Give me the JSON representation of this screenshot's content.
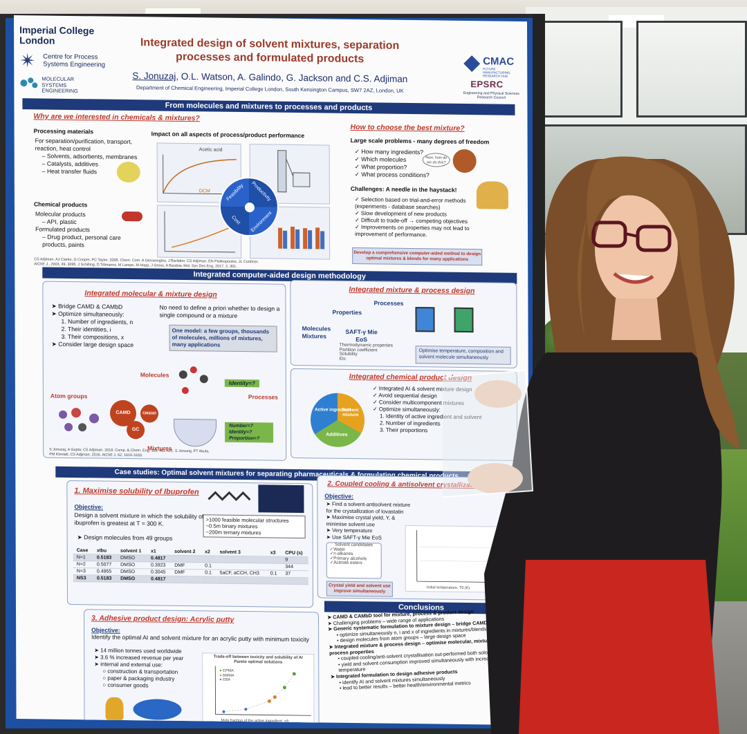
{
  "poster": {
    "header": {
      "institution": "Imperial College London",
      "centre": "Centre for Process Systems Engineering",
      "mse": "MOLECULAR SYSTEMS ENGINEERING",
      "title": "Integrated design of solvent mixtures, separation processes and formulated products",
      "lead_author": "S. Jonuzaj",
      "other_authors": ", O.L. Watson, A. Galindo, G. Jackson and C.S. Adjiman",
      "department": "Department of Chemical Engineering, Imperial College London, South Kensington Campus, SW7 2AZ, London, UK",
      "cmac": "CMAC",
      "cmac_sub": "FUTURE MANUFACTURING RESEARCH HUB",
      "epsrc": "EPSRC",
      "epsrc_sub": "Engineering and Physical Sciences Research Council"
    },
    "section1": {
      "bar": "From molecules and mixtures to processes and products",
      "why_heading": "Why are we interested in chemicals & mixtures?",
      "processing_heading": "Processing materials",
      "processing_items": [
        "For separation/purification, transport, reaction, heat control",
        "– Solvents, adsorbents, membranes",
        "– Catalysts, additives",
        "– Heat transfer fluids"
      ],
      "chemical_heading": "Chemical products",
      "chemical_items": [
        "Molecular products",
        "– API, plastic",
        "Formulated products",
        "– Drug product, personal care products, paints"
      ],
      "impact_heading": "Impact on all aspects of process/product performance",
      "acetic_acid": "Acetic acid",
      "dcm": "DCM",
      "feasibility": "Feasibility",
      "productivity": "Productivity",
      "cost": "Cost",
      "environment": "Environment",
      "refs": "CS Adjiman, AJ Clarke, G Cooper, PC Taylor. 2008. Chem. Com. A Giovanoglou, J Barlatier, CS Adjiman, EN Pistikopoulos, JL Cordiner. AIChE J., 2003, 49, 3095. J Schilling, D Tillmanns, M Lampe, M Hopp, J Gross, A Bardow, Mol. Sys Des Eng, 2017, 2, 301.",
      "how_heading": "How to choose the best mixture?",
      "large_scale": "Large scale problems - many degrees of freedom",
      "questions": [
        "How many ingredients?",
        "Which molecules",
        "What proportion?",
        "What process conditions?"
      ],
      "bubble": "Now, how do we do this?",
      "challenges": "Challenges:  A needle in the haystack!",
      "challenge_items": [
        "Selection based on trial-and-error methods (experiments - database searches)",
        "Slow development of new products",
        "Difficult to trade-off → competing objectives",
        "Improvements on properties may not lead to improvement of performance."
      ],
      "develop": "Develop a comprehensive computer-aided method to design optimal mixtures & blends for many applications"
    },
    "section2": {
      "bar": "Integrated computer-aided design methodology",
      "mm_heading": "Integrated molecular & mixture design",
      "mm_items": [
        "Bridge CAMD & CAMbD",
        "Optimize simultaneously:",
        "1. Number of ingredients, n",
        "2. Their identities, i",
        "3. Their compositions, x",
        "Consider large design space"
      ],
      "no_need": "No need to define a priori whether to design a single compound or a mixture",
      "one_model": "One model: a few groups, thousands of molecules, millions of mixtures, many applications",
      "molecules": "Molecules",
      "atom_groups": "Atom groups",
      "processes": "Processes",
      "mixtures": "Mixtures",
      "identity": "Identity=?",
      "number_identity": "Number=? Identity=? Proportion=?",
      "camd": "CAMD",
      "gc": "GC",
      "cmd": "CM&bD",
      "refs": "S Jonuzaj, A Gupta, CS Adjiman. 2018. Comp. & Chem. Eng. 116, 401-421. S Jonuzaj, PT Akula, PM Kleniati, CS Adjiman. 2016. AIChE J. 62, 1616-1633.",
      "mp_heading": "Integrated mixture & process design",
      "properties": "Properties",
      "process": "Processes",
      "molecules_mixtures": "Molecules Mixtures",
      "saft": "SAFT-γ Mie EoS",
      "thermo": [
        "Thermodynamic properties",
        "Partition coefficient",
        "Solubility",
        "Etc"
      ],
      "optimise": "Optimise temperature, composition and solvent molecule simultaneously",
      "cp_heading": "Integrated chemical product design",
      "cp_items": [
        "Integrated AI & solvent mixture design",
        "Avoid sequential design",
        "Consider multicomponent mixtures",
        "Optimize simultaneously:",
        "1. Identity of active ingredient and solvent",
        "2. Number of ingredients",
        "3. Their proportions"
      ],
      "active": "Active ingredient",
      "solvent": "Solvent mixture",
      "additives": "Additives"
    },
    "section3": {
      "bar": "Case studies: Optimal solvent mixtures for separating pharmaceuticals & formulating chemical products",
      "c1_heading": "1. Maximise solubility of Ibuprofen",
      "objective": "Objective:",
      "c1_obj": "Design a solvent mixture in which the solubility of ibuprofen is greatest at T = 300 K.",
      "c1_design": "Design molecules from 49 groups",
      "c1_box": [
        ">1000 feasible molecular structures",
        "~0.5m binary mixtures",
        "~200m ternary mixtures"
      ],
      "table_head": [
        "Case",
        "xIbu",
        "solvent 1",
        "x1",
        "solvent 2",
        "x2",
        "solvent 3",
        "x3",
        "CPU (s)"
      ],
      "table_rows": [
        [
          "N=1",
          "0.5183",
          "DMSO",
          "0.4817",
          "",
          "",
          "",
          "",
          "9"
        ],
        [
          "N=2",
          "0.5077",
          "DMSO",
          "0.3923",
          "DMF",
          "0.1",
          "",
          "",
          "344"
        ],
        [
          "N=3",
          "0.4955",
          "DMSO",
          "0.3045",
          "DMF",
          "0.1",
          "5aCF, aCCH, CH3",
          "0.1",
          "37"
        ],
        [
          "NS3",
          "0.5183",
          "DMSO",
          "0.4817",
          "",
          "",
          "",
          "",
          ""
        ]
      ],
      "c2_heading": "2. Coupled cooling & antisolvent crystallization",
      "c2_items": [
        "Find a solvent-antisolvent mixture for the crystallization of lovastatin",
        "Maximise crystal yield, Y, & minimise solvent use",
        "Very temperature",
        "Use SAFT-γ Mie EoS"
      ],
      "c2_candidates": "Solvent candidates",
      "c2_list": [
        "Water",
        "n-alkanes",
        "Primary alcohols",
        "Acetate esters"
      ],
      "c2_note": "Crystal yield and solvent use improve simultaneously",
      "c2_xlabel": "Initial temperature, T0 (K)",
      "c2_ylabel": "% Crystal yield, Y",
      "c3_heading": "3. Adhesive product design: Acrylic putty",
      "c3_obj": "Identify the optimal AI and solvent mixture for an acrylic putty with minimum toxicity",
      "c3_items": [
        "14 million tonnes used worldwide",
        "3.6 % increased revenue per year",
        "internal and external use:",
        "construction & transportation",
        "paper & packaging industry",
        "consumer goods"
      ],
      "c3_chart_title": "Trade-off between toxicity and solubility of AI Pareto optimal solutions",
      "c3_xlabel": "Mole fraction of the active ingredient, xA",
      "c3_legend": [
        "EPMA",
        "BMMA",
        "EBA"
      ],
      "conclusions_bar": "Conclusions",
      "conclusions": [
        "CAMD & CAMbD tool for mixture, process & product design",
        "Challenging problems – wide range of applications",
        "Generic systematic formulation to mixture design – bridge CAMD & CAMbD",
        "optimize simultaneously n, i and x of ingredients in mixtures/blends",
        "design molecules from atom groups – large design space",
        "Integrated mixture & process design – optimise molecular, mixture and process properties",
        "coupled cooling/anti-solvent crystallisation out-performed both solo techniques",
        "yield and solvent consumption improved simultaneously with increasing temperature",
        "Integrated formulation to design adhesive products",
        "identify AI and solvent mixtures simultaneously",
        "lead to better results – better health/environmental metrics"
      ]
    }
  },
  "colors": {
    "board": "#1d4fa3",
    "section_bar": "#1f3a7a",
    "heading_red": "#c0392b",
    "title_red": "#9b3a2a"
  }
}
